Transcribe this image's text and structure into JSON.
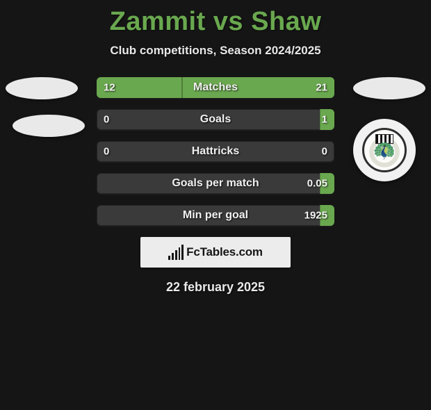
{
  "header": {
    "title": "Zammit vs Shaw",
    "subtitle": "Club competitions, Season 2024/2025"
  },
  "colors": {
    "accent": "#6aa84f",
    "bar_bg": "#3a3a3a",
    "page_bg": "#151515",
    "text": "#eaeaea"
  },
  "comparison": {
    "type": "comparison-bars",
    "rows": [
      {
        "label": "Matches",
        "left": "12",
        "right": "21",
        "left_pct": 36,
        "right_pct": 64,
        "shaded": "both"
      },
      {
        "label": "Goals",
        "left": "0",
        "right": "1",
        "left_pct": 0,
        "right_pct": 6,
        "shaded": "right-tip"
      },
      {
        "label": "Hattricks",
        "left": "0",
        "right": "0",
        "left_pct": 0,
        "right_pct": 0,
        "shaded": "none"
      },
      {
        "label": "Goals per match",
        "left": "",
        "right": "0.05",
        "left_pct": 0,
        "right_pct": 6,
        "shaded": "right-tip"
      },
      {
        "label": "Min per goal",
        "left": "",
        "right": "1925",
        "left_pct": 0,
        "right_pct": 6,
        "shaded": "right-tip"
      }
    ]
  },
  "brand": {
    "text": "FcTables.com"
  },
  "date": "22 february 2025",
  "badges": {
    "left_placeholders": 2,
    "right_placeholders": 1,
    "right_club_badge": true
  }
}
